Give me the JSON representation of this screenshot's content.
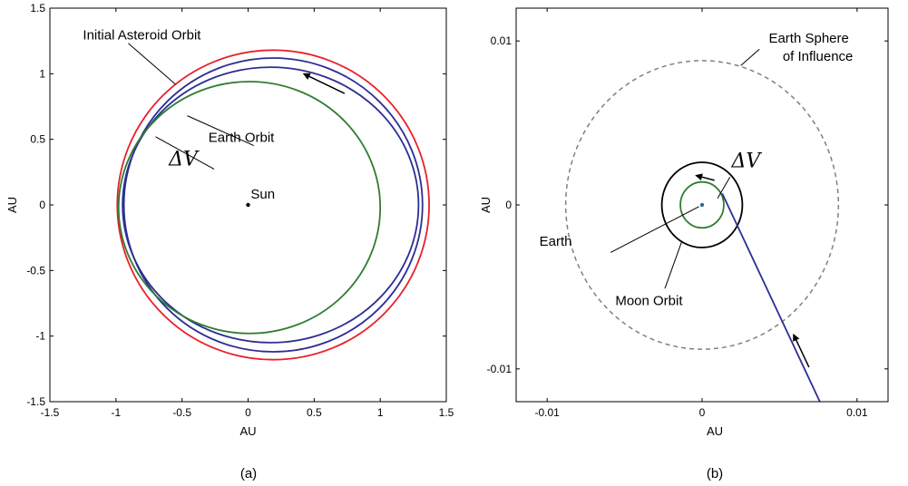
{
  "chart_data": [
    {
      "panel_caption": "(a)",
      "type": "line",
      "xlabel": "AU",
      "ylabel": "AU",
      "xlim": [
        -1.5,
        1.5
      ],
      "ylim": [
        -1.5,
        1.5
      ],
      "xticks": [
        -1.5,
        -1,
        -0.5,
        0,
        0.5,
        1,
        1.5
      ],
      "yticks": [
        -1.5,
        -1,
        -0.5,
        0,
        0.5,
        1,
        1.5
      ],
      "xtick_labels": [
        "-1.5",
        "-1",
        "-0.5",
        "0",
        "0.5",
        "1",
        "1.5"
      ],
      "ytick_labels": [
        "-1.5",
        "-1",
        "-0.5",
        "0",
        "0.5",
        "1",
        "1.5"
      ],
      "grid": false,
      "series": [
        {
          "curve": "initial-asteroid-orbit",
          "color": "#e8202a",
          "shape": "ellipse",
          "center": [
            0.19,
            0
          ],
          "radii": [
            1.18,
            1.18
          ]
        },
        {
          "curve": "transfer-orbit-outer",
          "color": "#2b2f94",
          "shape": "ellipse",
          "center": [
            0.19,
            0
          ],
          "radii": [
            1.13,
            1.12
          ]
        },
        {
          "curve": "transfer-orbit-inner",
          "color": "#2b2f94",
          "shape": "ellipse",
          "center": [
            0.17,
            0
          ],
          "radii": [
            1.12,
            1.05
          ]
        },
        {
          "curve": "earth-orbit",
          "color": "#2f7d32",
          "shape": "ellipse",
          "center": [
            0.01,
            -0.02
          ],
          "radii": [
            0.99,
            0.96
          ]
        }
      ],
      "points": [
        {
          "label": "Sun",
          "x": 0,
          "y": 0
        }
      ],
      "annotations": [
        {
          "text": "Initial Asteroid Orbit",
          "x": -1.25,
          "y": 1.26,
          "target": [
            -0.55,
            0.92
          ]
        },
        {
          "text": "Earth Orbit",
          "x": -0.3,
          "y": 0.48,
          "target": [
            -0.46,
            0.68
          ]
        },
        {
          "text": "ΔV",
          "x": -0.6,
          "y": 0.3,
          "target": [
            -0.7,
            0.52
          ],
          "math": true
        },
        {
          "text": "Sun",
          "x": 0.02,
          "y": 0.05
        }
      ],
      "direction_arrow": {
        "from": [
          0.73,
          0.85
        ],
        "to": [
          0.42,
          1.0
        ]
      }
    },
    {
      "panel_caption": "(b)",
      "type": "line",
      "xlabel": "AU",
      "ylabel": "AU",
      "xlim": [
        -0.012,
        0.012
      ],
      "ylim": [
        -0.012,
        0.012
      ],
      "xticks": [
        -0.01,
        0,
        0.01
      ],
      "yticks": [
        -0.01,
        0,
        0.01
      ],
      "xtick_labels": [
        "-0.01",
        "0",
        "0.01"
      ],
      "ytick_labels": [
        "-0.01",
        "0",
        "0.01"
      ],
      "grid": false,
      "series": [
        {
          "curve": "earth-sphere-of-influence",
          "color": "#808080",
          "style": "dashed",
          "shape": "circle",
          "center": [
            0,
            0
          ],
          "radius": 0.0088
        },
        {
          "curve": "moon-orbit",
          "color": "#000000",
          "shape": "circle",
          "center": [
            0,
            0
          ],
          "radius": 0.0026
        },
        {
          "curve": "spiral-orbit",
          "color": "#2f7d32",
          "shape": "circle",
          "center": [
            0,
            0
          ],
          "radius": 0.0014
        },
        {
          "curve": "approach-trajectory",
          "color": "#2b2f94",
          "x": [
            0.0076,
            0.0013
          ],
          "y": [
            -0.012,
            0.0007
          ]
        }
      ],
      "points": [
        {
          "label": "Earth",
          "x": 0,
          "y": 0
        }
      ],
      "annotations": [
        {
          "text": "Earth Sphere",
          "x": 0.0043,
          "y": 0.0099
        },
        {
          "text": "of Influence",
          "x": 0.0052,
          "y": 0.0088
        },
        {
          "text": "ΔV",
          "x": 0.0019,
          "y": 0.0023,
          "math": true
        },
        {
          "text": "Earth",
          "x": -0.0084,
          "y": -0.0025
        },
        {
          "text": "Moon Orbit",
          "x": -0.0056,
          "y": -0.0061
        }
      ],
      "direction_arrows": [
        {
          "from": [
            0.0069,
            -0.0099
          ],
          "to": [
            0.0059,
            -0.0079
          ]
        },
        {
          "from": [
            0.0008,
            0.0015
          ],
          "to": [
            -0.0004,
            0.0018
          ]
        }
      ]
    }
  ]
}
